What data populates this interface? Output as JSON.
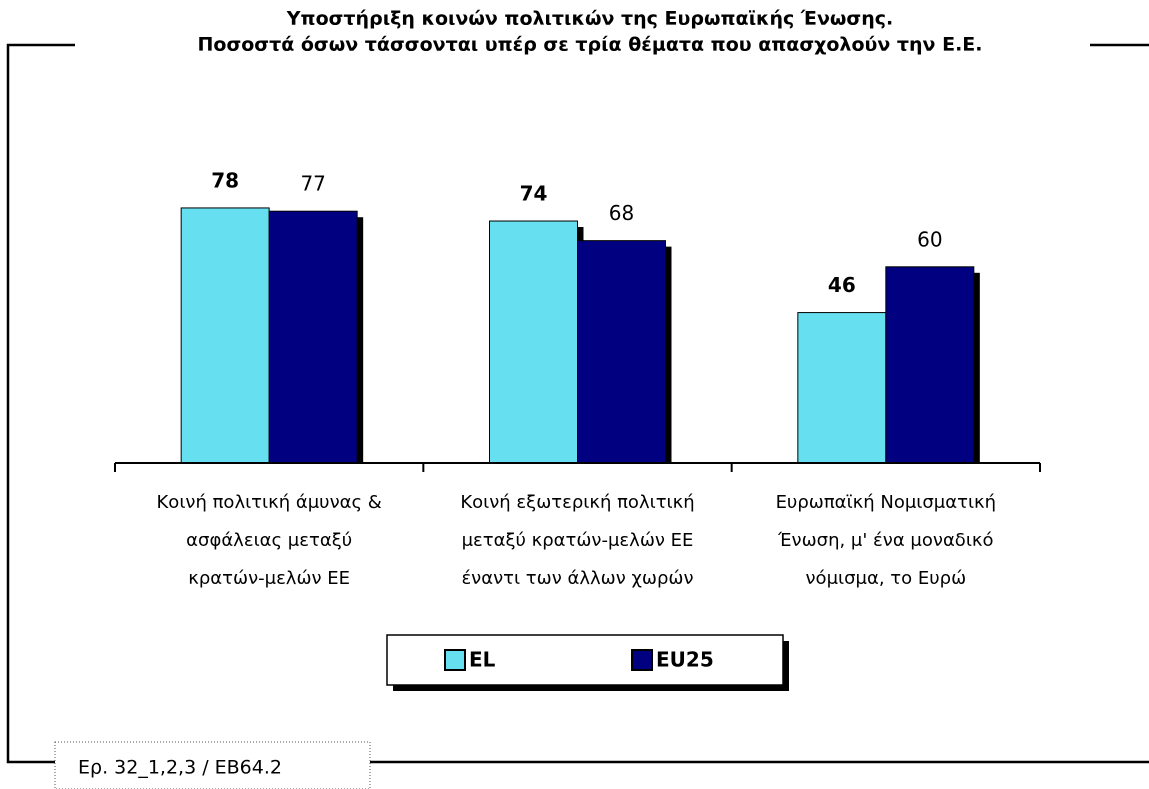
{
  "chart_data": {
    "type": "bar",
    "title": [
      "Υποστήριξη κοινών πολιτικών της Ευρωπαϊκής Ένωσης.",
      "Ποσοστά όσων τάσσονται υπέρ σε τρία θέματα που απασχολούν την Ε.Ε."
    ],
    "categories": [
      [
        "Κοινή πολιτική άμυνας &",
        "ασφάλειας μεταξύ",
        "κρατών-μελών ΕΕ"
      ],
      [
        "Κοινή εξωτερική πολιτική",
        "μεταξύ κρατών-μελών ΕΕ",
        "έναντι των άλλων χωρών"
      ],
      [
        "Ευρωπαϊκή Νομισματική",
        "Ένωση, μ' ένα μοναδικό",
        "νόμισμα, το Ευρώ"
      ]
    ],
    "series": [
      {
        "name": "EL",
        "color": "#66e0f0",
        "values": [
          78,
          74,
          46
        ]
      },
      {
        "name": "EU25",
        "color": "#000080",
        "values": [
          77,
          68,
          60
        ]
      }
    ],
    "ylim": [
      0,
      100
    ],
    "source": "Ερ. 32_1,2,3 / EB64.2"
  }
}
